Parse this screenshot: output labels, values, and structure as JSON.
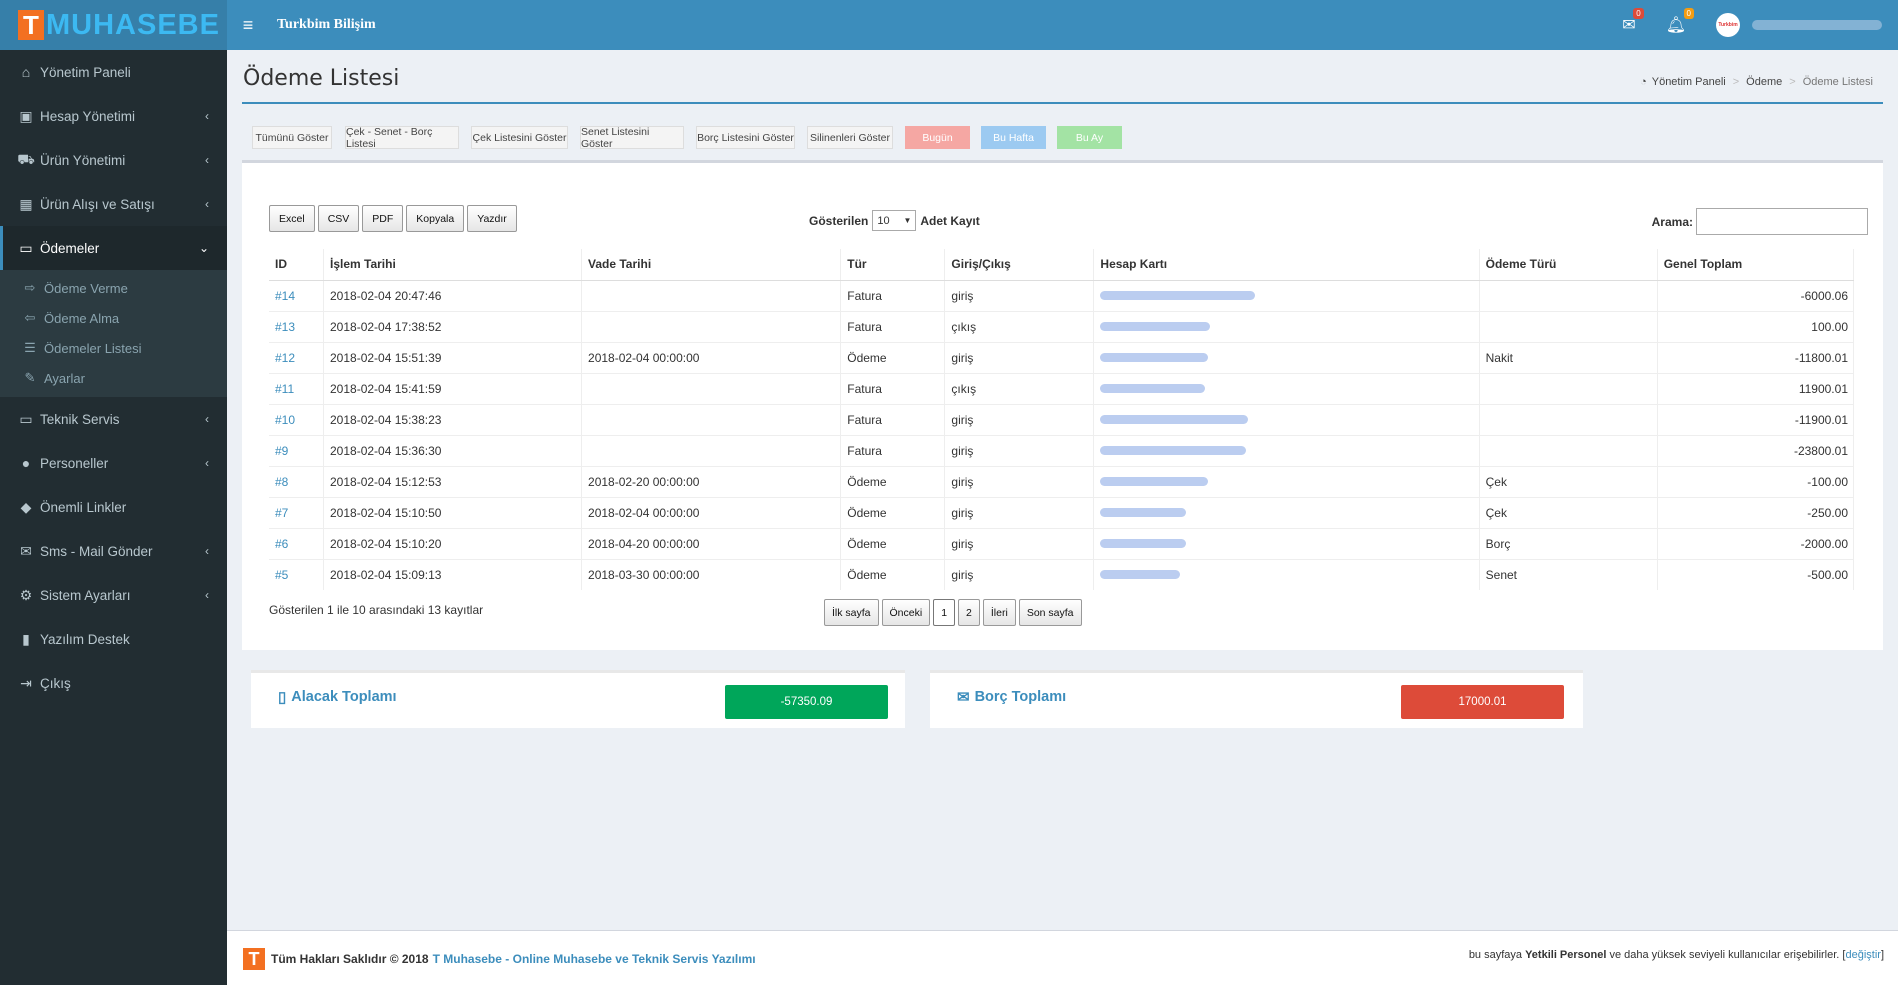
{
  "app": {
    "logo_letter": "T",
    "logo_text": "MUHASEBE",
    "brand": "Turkbim Bilişim"
  },
  "header": {
    "mail_count": "0",
    "bell_count": "0",
    "avatar_text": "Turkbim"
  },
  "sidebar": {
    "items": [
      {
        "label": "Yönetim Paneli",
        "icon": "home-icon",
        "glyph": "⌂",
        "chevron": false
      },
      {
        "label": "Hesap Yönetimi",
        "icon": "money-icon",
        "glyph": "▣",
        "chevron": true
      },
      {
        "label": "Ürün Yönetimi",
        "icon": "cart-icon",
        "glyph": "⛟",
        "chevron": true
      },
      {
        "label": "Ürün Alışı ve Satışı",
        "icon": "grid-icon",
        "glyph": "▦",
        "chevron": true
      },
      {
        "label": "Ödemeler",
        "icon": "card-icon",
        "glyph": "▭",
        "chevron": true,
        "active": true
      },
      {
        "label": "Teknik Servis",
        "icon": "laptop-icon",
        "glyph": "▭",
        "chevron": true
      },
      {
        "label": "Personeller",
        "icon": "user-icon",
        "glyph": "●",
        "chevron": true
      },
      {
        "label": "Önemli Linkler",
        "icon": "tags-icon",
        "glyph": "◆",
        "chevron": false
      },
      {
        "label": "Sms - Mail Gönder",
        "icon": "envelope-icon",
        "glyph": "✉",
        "chevron": true
      },
      {
        "label": "Sistem Ayarları",
        "icon": "gear-icon",
        "glyph": "⚙",
        "chevron": true
      },
      {
        "label": "Yazılım Destek",
        "icon": "bookmark-icon",
        "glyph": "▮",
        "chevron": false
      },
      {
        "label": "Çıkış",
        "icon": "logout-icon",
        "glyph": "⇥",
        "chevron": false
      }
    ],
    "submenu": [
      {
        "label": "Ödeme Verme",
        "glyph": "⇨"
      },
      {
        "label": "Ödeme Alma",
        "glyph": "⇦"
      },
      {
        "label": "Ödemeler Listesi",
        "glyph": "☰"
      },
      {
        "label": "Ayarlar",
        "glyph": "✎"
      }
    ]
  },
  "page": {
    "title": "Ödeme Listesi"
  },
  "breadcrumb": {
    "home": "Yönetim Paneli",
    "mid": "Ödeme",
    "current": "Ödeme Listesi"
  },
  "filters": [
    "Tümünü Göster",
    "Çek - Senet - Borç Listesi",
    "Çek Listesini Göster",
    "Senet Listesini Göster",
    "Borç Listesini Göster",
    "Silinenleri Göster",
    "Bugün",
    "Bu Hafta",
    "Bu Ay"
  ],
  "tools": [
    "Excel",
    "CSV",
    "PDF",
    "Kopyala",
    "Yazdır"
  ],
  "length": {
    "prefix": "Gösterilen",
    "value": "10",
    "suffix": "Adet Kayıt"
  },
  "search": {
    "label": "Arama:",
    "value": ""
  },
  "table": {
    "columns": [
      "ID",
      "İşlem Tarihi",
      "Vade Tarihi",
      "Tür",
      "Giriş/Çıkış",
      "Hesap Kartı",
      "Ödeme Türü",
      "Genel Toplam"
    ],
    "rows": [
      {
        "id": "#14",
        "islem": "2018-02-04 20:47:46",
        "vade": "",
        "tur": "Fatura",
        "giris": "giriş",
        "odeme": "",
        "toplam": "-6000.06"
      },
      {
        "id": "#13",
        "islem": "2018-02-04 17:38:52",
        "vade": "",
        "tur": "Fatura",
        "giris": "çıkış",
        "odeme": "",
        "toplam": "100.00"
      },
      {
        "id": "#12",
        "islem": "2018-02-04 15:51:39",
        "vade": "2018-02-04 00:00:00",
        "tur": "Ödeme",
        "giris": "giriş",
        "odeme": "Nakit",
        "toplam": "-11800.01"
      },
      {
        "id": "#11",
        "islem": "2018-02-04 15:41:59",
        "vade": "",
        "tur": "Fatura",
        "giris": "çıkış",
        "odeme": "",
        "toplam": "11900.01"
      },
      {
        "id": "#10",
        "islem": "2018-02-04 15:38:23",
        "vade": "",
        "tur": "Fatura",
        "giris": "giriş",
        "odeme": "",
        "toplam": "-11900.01"
      },
      {
        "id": "#9",
        "islem": "2018-02-04 15:36:30",
        "vade": "",
        "tur": "Fatura",
        "giris": "giriş",
        "odeme": "",
        "toplam": "-23800.01"
      },
      {
        "id": "#8",
        "islem": "2018-02-04 15:12:53",
        "vade": "2018-02-20 00:00:00",
        "tur": "Ödeme",
        "giris": "giriş",
        "odeme": "Çek",
        "toplam": "-100.00"
      },
      {
        "id": "#7",
        "islem": "2018-02-04 15:10:50",
        "vade": "2018-02-04 00:00:00",
        "tur": "Ödeme",
        "giris": "giriş",
        "odeme": "Çek",
        "toplam": "-250.00"
      },
      {
        "id": "#6",
        "islem": "2018-02-04 15:10:20",
        "vade": "2018-04-20 00:00:00",
        "tur": "Ödeme",
        "giris": "giriş",
        "odeme": "Borç",
        "toplam": "-2000.00"
      },
      {
        "id": "#5",
        "islem": "2018-02-04 15:09:13",
        "vade": "2018-03-30 00:00:00",
        "tur": "Ödeme",
        "giris": "giriş",
        "odeme": "Senet",
        "toplam": "-500.00"
      }
    ]
  },
  "info": "Gösterilen 1 ile 10 arasındaki 13 kayıtlar",
  "pagination": [
    "İlk sayfa",
    "Önceki",
    "1",
    "2",
    "İleri",
    "Son sayfa"
  ],
  "summary": {
    "alacak_label": "Alacak Toplamı",
    "alacak_value": "-57350.09",
    "alacak_color": "#00a65a",
    "borc_label": "Borç Toplamı",
    "borc_value": "17000.01",
    "borc_color": "#dd4b39"
  },
  "footer": {
    "left": "Tüm Hakları Saklıdır © 2018",
    "link": "T Muhasebe - Online Muhasebe ve Teknik Servis Yazılımı",
    "right_pre": "bu sayfaya",
    "right_bold": "Yetkili Personel",
    "right_post": "ve daha yüksek seviyeli kullanıcılar erişebilirler. [",
    "right_link": "değiştir",
    "right_end": "]"
  }
}
